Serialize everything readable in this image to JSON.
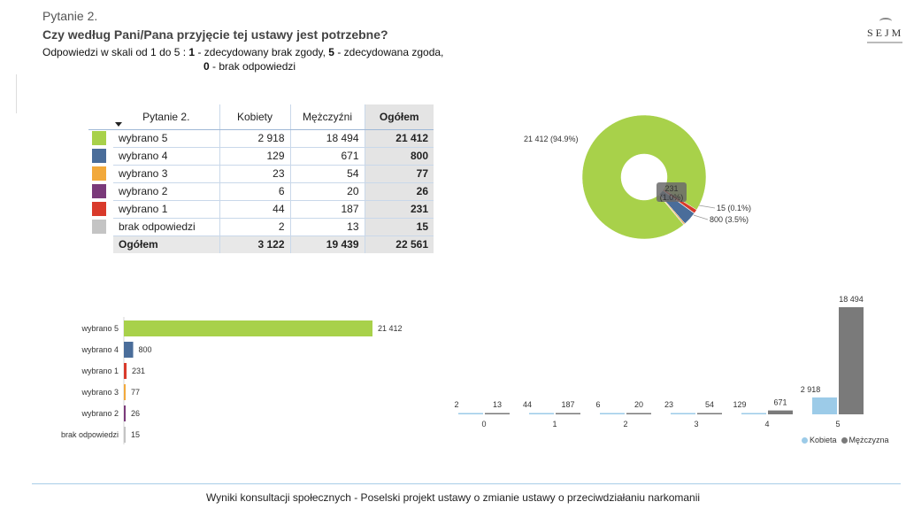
{
  "header": {
    "question_number": "Pytanie 2.",
    "question": "Czy według Pani/Pana przyjęcie tej ustawy jest potrzebne?",
    "scale_prefix": "Odpowiedzi w skali od 1 do 5 : ",
    "scale_1_key": "1",
    "scale_1_text": " - zdecydowany brak zgody, ",
    "scale_5_key": "5",
    "scale_5_text": " - zdecydowana zgoda,",
    "scale_0_key": "0",
    "scale_0_text": " - brak odpowiedzi"
  },
  "logo": {
    "text": "SEJM"
  },
  "table": {
    "headers": [
      "Pytanie 2.",
      "Kobiety",
      "Mężczyźni",
      "Ogółem"
    ],
    "rows": [
      {
        "label": "wybrano 5",
        "color": "#a8d14a",
        "kobiety": "2 918",
        "mezczyzni": "18 494",
        "ogolem": "21 412"
      },
      {
        "label": "wybrano 4",
        "color": "#4a6d9a",
        "kobiety": "129",
        "mezczyzni": "671",
        "ogolem": "800"
      },
      {
        "label": "wybrano 3",
        "color": "#f2a93b",
        "kobiety": "23",
        "mezczyzni": "54",
        "ogolem": "77"
      },
      {
        "label": "wybrano 2",
        "color": "#7a3a7a",
        "kobiety": "6",
        "mezczyzni": "20",
        "ogolem": "26"
      },
      {
        "label": "wybrano 1",
        "color": "#d93a2b",
        "kobiety": "44",
        "mezczyzni": "187",
        "ogolem": "231"
      },
      {
        "label": "brak odpowiedzi",
        "color": "#c4c4c4",
        "kobiety": "2",
        "mezczyzni": "13",
        "ogolem": "15"
      }
    ],
    "total": {
      "label": "Ogółem",
      "kobiety": "3 122",
      "mezczyzni": "19 439",
      "ogolem": "22 561"
    }
  },
  "chart_data": [
    {
      "type": "pie",
      "donut": true,
      "slices": [
        {
          "name": "wybrano 5",
          "value": 21412,
          "label": "21 412 (94.9%)",
          "color": "#a8d14a"
        },
        {
          "name": "wybrano 1",
          "value": 231,
          "label": "231 (1.0%)",
          "color": "#d93a2b"
        },
        {
          "name": "brak odpowiedzi",
          "value": 15,
          "label": "15 (0.1%)",
          "color": "#c4c4c4"
        },
        {
          "name": "wybrano 4",
          "value": 800,
          "label": "800 (3.5%)",
          "color": "#4a6d9a"
        },
        {
          "name": "wybrano 3",
          "value": 77,
          "label": "",
          "color": "#f2a93b"
        },
        {
          "name": "wybrano 2",
          "value": 26,
          "label": "",
          "color": "#7a3a7a"
        }
      ]
    },
    {
      "type": "bar",
      "orientation": "horizontal",
      "categories": [
        "wybrano 5",
        "wybrano 4",
        "wybrano 1",
        "wybrano 3",
        "wybrano 2",
        "brak odpowiedzi"
      ],
      "values": [
        21412,
        800,
        231,
        77,
        26,
        15
      ],
      "value_labels": [
        "21 412",
        "800",
        "231",
        "77",
        "26",
        "15"
      ],
      "colors": [
        "#a8d14a",
        "#4a6d9a",
        "#d93a2b",
        "#f2a93b",
        "#7a3a7a",
        "#c4c4c4"
      ],
      "xlim": [
        0,
        21412
      ]
    },
    {
      "type": "bar",
      "orientation": "vertical",
      "categories": [
        "0",
        "1",
        "2",
        "3",
        "4",
        "5"
      ],
      "series": [
        {
          "name": "Kobieta",
          "color": "#9ccbe8",
          "values": [
            2,
            44,
            6,
            23,
            129,
            2918
          ],
          "value_labels": [
            "2",
            "44",
            "6",
            "23",
            "129",
            "2 918"
          ]
        },
        {
          "name": "Mężczyzna",
          "color": "#7a7a7a",
          "values": [
            13,
            187,
            20,
            54,
            671,
            18494
          ],
          "value_labels": [
            "13",
            "187",
            "20",
            "54",
            "671",
            "18 494"
          ]
        }
      ],
      "ylim": [
        0,
        18494
      ],
      "legend": "bottom-right"
    }
  ],
  "footer": "Wyniki konsultacji społecznych - Poselski projekt ustawy o zmianie ustawy o przeciwdziałaniu narkomanii"
}
